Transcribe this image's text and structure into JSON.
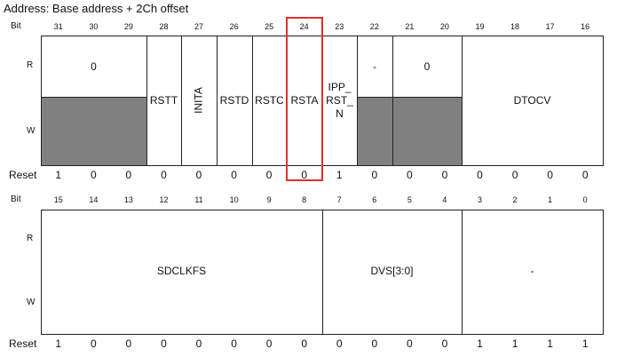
{
  "title": "Address: Base address + 2Ch offset",
  "labels": {
    "bit": "Bit",
    "r": "R",
    "w": "W",
    "reset": "Reset"
  },
  "top": {
    "bits": [
      "31",
      "30",
      "29",
      "28",
      "27",
      "26",
      "25",
      "24",
      "23",
      "22",
      "21",
      "20",
      "19",
      "18",
      "17",
      "16"
    ],
    "fields": {
      "f31_29": "0",
      "rstt": "RSTT",
      "inita": "INITA",
      "rstd": "RSTD",
      "rstc": "RSTC",
      "rsta": "RSTA",
      "ipp1": "IPP_",
      "ipp2": "RST_",
      "ipp3": "N",
      "f22": "-",
      "f21_20": "0",
      "dtocv": "DTOCV"
    },
    "reset": [
      "1",
      "0",
      "0",
      "0",
      "0",
      "0",
      "0",
      "0",
      "1",
      "0",
      "0",
      "0",
      "0",
      "0",
      "0",
      "0"
    ]
  },
  "bottom": {
    "bits": [
      "15",
      "14",
      "13",
      "12",
      "11",
      "10",
      "9",
      "8",
      "7",
      "6",
      "5",
      "4",
      "3",
      "2",
      "1",
      "0"
    ],
    "fields": {
      "sdclkfs": "SDCLKFS",
      "dvs": "DVS[3:0]",
      "dash": "-"
    },
    "reset": [
      "1",
      "0",
      "0",
      "0",
      "0",
      "0",
      "0",
      "0",
      "0",
      "0",
      "0",
      "0",
      "1",
      "1",
      "1",
      "1"
    ]
  },
  "colors": {
    "shade": "#808080",
    "highlight": "#e03030"
  }
}
